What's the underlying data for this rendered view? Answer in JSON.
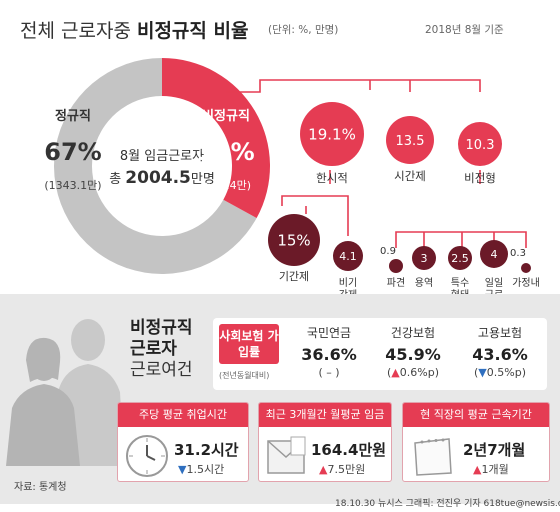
{
  "header": {
    "title_plain": "전체 근로자중",
    "title_bold": "비정규직 비율",
    "unit": "(단위: %, 만명)",
    "date": "2018년 8월 기준"
  },
  "colors": {
    "accent": "#e53c53",
    "regular": "#c4c4c4",
    "dark_bubble": "#6b1a28",
    "arrow_down": "#2f6fbf"
  },
  "donut": {
    "center_line1": "8월 임금근로자",
    "center_line2_prefix": "총",
    "center_line2_value": "2004.5",
    "center_line2_suffix": "만명"
  },
  "chart_data": {
    "type": "pie",
    "slices": [
      {
        "label": "정규직",
        "percent": 67,
        "value": 1343.1,
        "value_label": "(1343.1만)"
      },
      {
        "label": "비정규직",
        "percent": 33,
        "value": 661.4,
        "value_label": "(661.4만)"
      }
    ],
    "breakdown": [
      {
        "label": "한시적",
        "value": 19.1,
        "value_label": "19.1%",
        "parent": "비정규직"
      },
      {
        "label": "시간제",
        "value": 13.5,
        "value_label": "13.5",
        "parent": "비정규직"
      },
      {
        "label": "비전형",
        "value": 10.3,
        "value_label": "10.3",
        "parent": "비정규직"
      },
      {
        "label": "기간제",
        "value": 15,
        "value_label": "15%",
        "parent": "한시적"
      },
      {
        "label": "비기간제",
        "value": 4.1,
        "value_label": "4.1",
        "parent": "한시적"
      },
      {
        "label": "파견",
        "value": 0.9,
        "value_label": "0.9",
        "parent": "비전형"
      },
      {
        "label": "용역",
        "value": 3,
        "value_label": "3",
        "parent": "비전형"
      },
      {
        "label": "특수형태",
        "value": 2.5,
        "value_label": "2.5",
        "parent": "비전형"
      },
      {
        "label": "일일근로",
        "value": 4,
        "value_label": "4",
        "parent": "비전형"
      },
      {
        "label": "가정내",
        "value": 0.3,
        "value_label": "0.3",
        "parent": "비전형"
      }
    ]
  },
  "conditions": {
    "title_line1": "비정규직",
    "title_line2": "근로자",
    "title_line3": "근로여건",
    "insurance_tag": "사회보험 가입률",
    "insurance_note": "(전년동월대비)",
    "insurance": [
      {
        "label": "국민연금",
        "value": "36.6%",
        "change": "( – )"
      },
      {
        "label": "건강보험",
        "value": "45.9%",
        "change": "(▲0.6%p)"
      },
      {
        "label": "고용보험",
        "value": "43.6%",
        "change": "(▼0.5%p)"
      }
    ],
    "cards": [
      {
        "title": "주당 평균 취업시간",
        "value": "31.2시간",
        "change": "▼1.5시간",
        "icon": "clock-icon"
      },
      {
        "title": "최근 3개월간 월평균 임금",
        "value": "164.4만원",
        "change": "▲7.5만원",
        "icon": "envelope-icon"
      },
      {
        "title": "현 직장의 평균 근속기간",
        "value": "2년7개월",
        "change": "▲1개월",
        "icon": "calendar-icon"
      }
    ]
  },
  "footer": {
    "source": "자료: 통계청",
    "credit": "18.10.30 뉴시스 그래픽: 전진우 기자 618tue@newsis.com"
  }
}
